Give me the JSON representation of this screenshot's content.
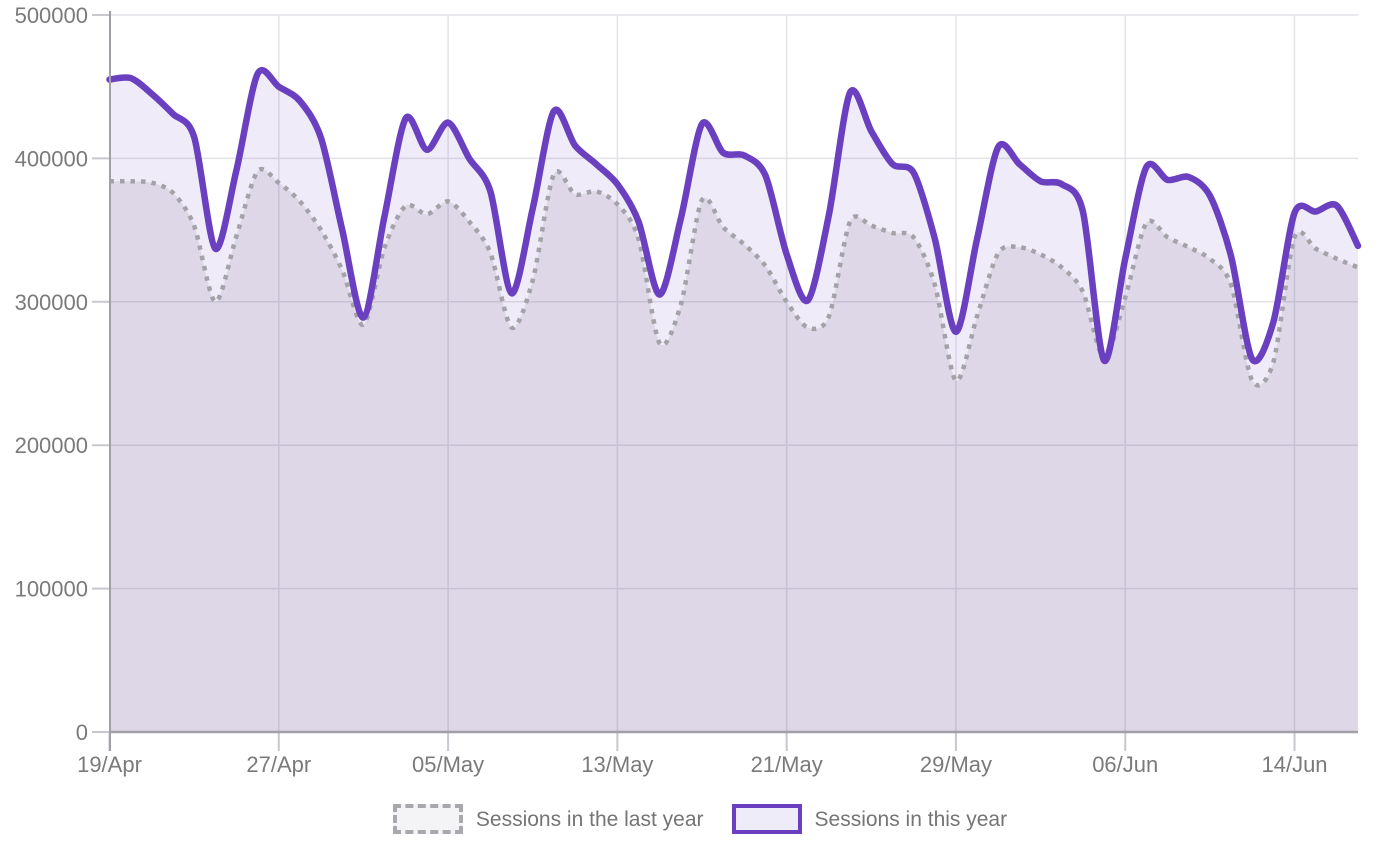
{
  "chart_data": {
    "type": "area",
    "title": "",
    "x_tick_labels": [
      "19/Apr",
      "27/Apr",
      "05/May",
      "13/May",
      "21/May",
      "29/May",
      "06/Jun",
      "14/Jun"
    ],
    "x_tick_indices": [
      0,
      8,
      16,
      24,
      32,
      40,
      48,
      56
    ],
    "y_ticks": [
      0,
      100000,
      200000,
      300000,
      400000,
      500000
    ],
    "ylim": [
      0,
      500000
    ],
    "grid": true,
    "legend_position": "bottom",
    "x": [
      "19/Apr",
      "20/Apr",
      "21/Apr",
      "22/Apr",
      "23/Apr",
      "24/Apr",
      "25/Apr",
      "26/Apr",
      "27/Apr",
      "28/Apr",
      "29/Apr",
      "30/Apr",
      "01/May",
      "02/May",
      "03/May",
      "04/May",
      "05/May",
      "06/May",
      "07/May",
      "08/May",
      "09/May",
      "10/May",
      "11/May",
      "12/May",
      "13/May",
      "14/May",
      "15/May",
      "16/May",
      "17/May",
      "18/May",
      "19/May",
      "20/May",
      "21/May",
      "22/May",
      "23/May",
      "24/May",
      "25/May",
      "26/May",
      "27/May",
      "28/May",
      "29/May",
      "30/May",
      "31/May",
      "01/Jun",
      "02/Jun",
      "03/Jun",
      "04/Jun",
      "05/Jun",
      "06/Jun",
      "07/Jun",
      "08/Jun",
      "09/Jun",
      "10/Jun",
      "11/Jun",
      "12/Jun",
      "13/Jun",
      "14/Jun",
      "15/Jun",
      "16/Jun",
      "17/Jun"
    ],
    "series": [
      {
        "name": "Sessions in the last year",
        "style": "dotted",
        "color": "#a3a2a8",
        "fill": "rgba(96,87,120,0.13)",
        "values": [
          384000,
          384000,
          383000,
          376000,
          353000,
          300000,
          346000,
          391000,
          383000,
          370000,
          350000,
          322000,
          284000,
          338000,
          367000,
          361000,
          370000,
          356000,
          334000,
          282000,
          315000,
          389000,
          375000,
          377000,
          368000,
          344000,
          271000,
          298000,
          371000,
          352000,
          340000,
          325000,
          300000,
          282000,
          290000,
          356000,
          353000,
          348000,
          345000,
          312000,
          245000,
          290000,
          334000,
          338000,
          333000,
          324000,
          307000,
          261000,
          303000,
          355000,
          345000,
          338000,
          330000,
          312000,
          245000,
          258000,
          345000,
          337000,
          330000,
          324000
        ]
      },
      {
        "name": "Sessions in this year",
        "style": "solid",
        "color": "#6a40c0",
        "fill": "rgba(104,62,190,0.10)",
        "values": [
          455000,
          456000,
          445000,
          431000,
          415000,
          337000,
          392000,
          459000,
          450000,
          440000,
          414000,
          350000,
          289000,
          360000,
          428000,
          406000,
          425000,
          400000,
          377000,
          306000,
          365000,
          433000,
          409000,
          396000,
          382000,
          356000,
          305000,
          358000,
          424000,
          404000,
          402000,
          388000,
          333000,
          301000,
          361000,
          446000,
          419000,
          396000,
          390000,
          344000,
          279000,
          344000,
          408000,
          396000,
          384000,
          382000,
          363000,
          259000,
          330000,
          394000,
          385000,
          387000,
          374000,
          332000,
          260000,
          286000,
          362000,
          363000,
          367000,
          339000
        ]
      }
    ],
    "colors": {
      "gridline": "#e4e3e8",
      "axis": "#a2a0a6",
      "tick": "#c9c7cd",
      "label": "#7a7a7a"
    }
  }
}
